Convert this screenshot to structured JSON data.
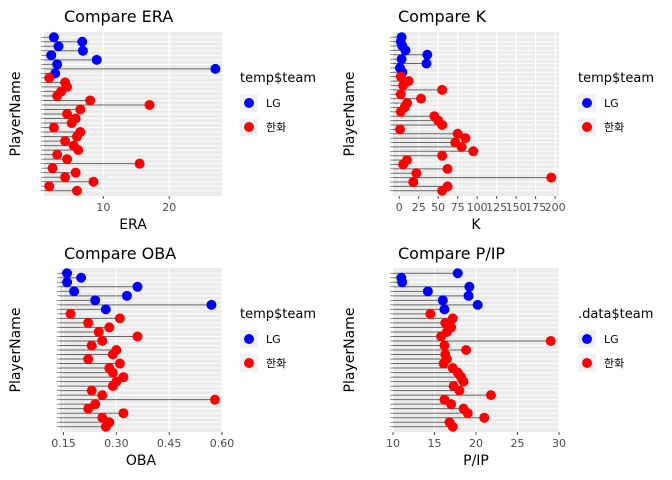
{
  "chart_data": [
    {
      "type": "scatter",
      "title": "Compare ERA",
      "xlabel": "ERA",
      "ylabel": "PlayerName",
      "xlim": [
        1,
        28
      ],
      "xticks": [
        10,
        20
      ],
      "legend_title": "temp$team",
      "legend_position": "right",
      "grid": true,
      "series": [
        {
          "name": "LG",
          "color": "#0000FF",
          "values": [
            2.5,
            6.8,
            3.2,
            6.9,
            2.1,
            9.0,
            3.0,
            27.0,
            2.7
          ]
        },
        {
          "name": "한화",
          "color": "#FF0000",
          "values": [
            1.8,
            4.2,
            4.5,
            3.6,
            3.0,
            8.0,
            17.0,
            6.5,
            4.5,
            5.8,
            5.2,
            2.5,
            6.5,
            6.0,
            4.2,
            5.5,
            6.2,
            3.0,
            4.5,
            15.5,
            2.3,
            5.8,
            4.2,
            8.5,
            1.8,
            6.0
          ]
        }
      ]
    },
    {
      "type": "scatter",
      "title": "Compare K",
      "xlabel": "K",
      "ylabel": "PlayerName",
      "xlim": [
        -8,
        205
      ],
      "xticks": [
        0,
        25,
        50,
        75,
        100,
        125,
        150,
        175,
        200
      ],
      "legend_title": "temp$team",
      "legend_position": "right",
      "grid": true,
      "series": [
        {
          "name": "LG",
          "color": "#0000FF",
          "values": [
            3,
            2,
            4,
            8,
            36,
            3,
            35,
            1,
            4
          ]
        },
        {
          "name": "한화",
          "color": "#FF0000",
          "values": [
            2,
            12,
            5,
            55,
            2,
            28,
            10,
            7,
            2,
            45,
            50,
            55,
            1,
            75,
            85,
            72,
            80,
            95,
            55,
            10,
            5,
            62,
            22,
            195,
            18,
            62,
            55
          ]
        }
      ]
    },
    {
      "type": "scatter",
      "title": "Compare OBA",
      "xlabel": "OBA",
      "ylabel": "PlayerName",
      "xlim": [
        0.14,
        0.6
      ],
      "xticks": [
        0.15,
        0.3,
        0.45,
        0.6
      ],
      "legend_title": "temp$team",
      "legend_position": "right",
      "grid": true,
      "series": [
        {
          "name": "LG",
          "color": "#0000FF",
          "values": [
            0.16,
            0.2,
            0.16,
            0.36,
            0.18,
            0.33,
            0.24,
            0.57,
            0.27
          ]
        },
        {
          "name": "한화",
          "color": "#FF0000",
          "values": [
            0.17,
            0.31,
            0.22,
            0.28,
            0.25,
            0.36,
            0.26,
            0.23,
            0.3,
            0.29,
            0.22,
            0.31,
            0.28,
            0.29,
            0.32,
            0.3,
            0.29,
            0.23,
            0.26,
            0.58,
            0.24,
            0.22,
            0.32,
            0.26,
            0.28,
            0.27
          ]
        }
      ]
    },
    {
      "type": "scatter",
      "title": "Compare P/IP",
      "xlabel": "P/IP",
      "ylabel": "PlayerName",
      "xlim": [
        10,
        30
      ],
      "xticks": [
        10,
        15,
        20,
        25,
        30
      ],
      "legend_title": ".data$team",
      "legend_position": "right",
      "grid": true,
      "series": [
        {
          "name": "LG",
          "color": "#0000FF",
          "values": [
            17.8,
            11.0,
            11.1,
            19.2,
            14.2,
            19.1,
            16.0,
            20.2,
            16.2
          ]
        },
        {
          "name": "한화",
          "color": "#FF0000",
          "values": [
            14.5,
            17.2,
            16.3,
            17.0,
            16.5,
            15.8,
            29.0,
            16.2,
            18.8,
            16.3,
            16.5,
            16.1,
            17.2,
            17.8,
            18.2,
            18.5,
            17.3,
            18.0,
            21.8,
            16.2,
            17.0,
            18.5,
            19.0,
            21.0,
            16.8,
            17.2
          ]
        }
      ]
    }
  ]
}
